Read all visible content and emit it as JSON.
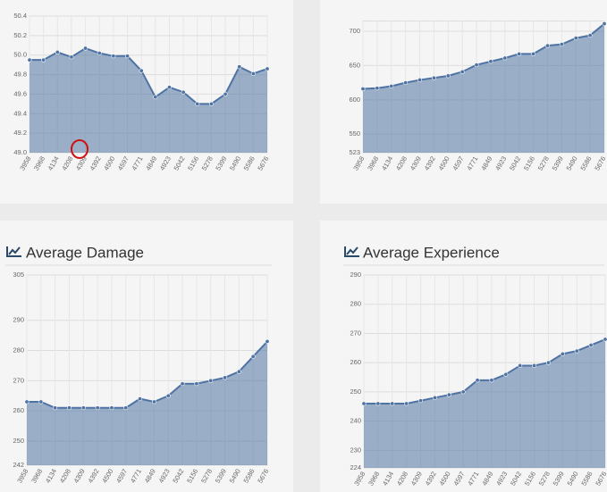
{
  "chart_data": [
    {
      "type": "area",
      "color": "#4e73a3",
      "categories": [
        "3958",
        "3968",
        "4134",
        "4208",
        "4309",
        "4392",
        "4500",
        "4597",
        "4771",
        "4849",
        "4923",
        "5042",
        "5156",
        "5278",
        "5399",
        "5490",
        "5586",
        "5676"
      ],
      "values": [
        49.95,
        49.95,
        50.03,
        49.98,
        50.07,
        50.02,
        49.99,
        49.99,
        49.84,
        49.57,
        49.67,
        49.62,
        49.5,
        49.5,
        49.6,
        49.88,
        49.81,
        49.86
      ],
      "ylim": [
        49.0,
        50.4
      ],
      "yticks": [
        {
          "value": 49.0,
          "label": "49.0"
        },
        49.2,
        49.4,
        49.6,
        49.8,
        {
          "value": 50.0,
          "label": "50.0"
        },
        50.2,
        50.4
      ],
      "grid": true
    },
    {
      "type": "area",
      "color": "#4e73a3",
      "categories": [
        "3958",
        "3968",
        "4134",
        "4208",
        "4309",
        "4392",
        "4500",
        "4597",
        "4771",
        "4849",
        "4923",
        "5042",
        "5156",
        "5278",
        "5399",
        "5490",
        "5586",
        "5676"
      ],
      "values": [
        616,
        617,
        620,
        625,
        629,
        632,
        635,
        641,
        651,
        656,
        661,
        667,
        667,
        679,
        681,
        690,
        694,
        711
      ],
      "ylim": [
        523,
        715
      ],
      "yticks": [
        523,
        550,
        600,
        650,
        700
      ],
      "grid": true
    },
    {
      "type": "area",
      "title": "Average Damage",
      "color": "#4e73a3",
      "categories": [
        "3958",
        "3968",
        "4134",
        "4208",
        "4309",
        "4392",
        "4500",
        "4597",
        "4771",
        "4849",
        "4923",
        "5042",
        "5156",
        "5278",
        "5399",
        "5490",
        "5586",
        "5676"
      ],
      "values": [
        263,
        263,
        261,
        261,
        261,
        261,
        261,
        261,
        264,
        263,
        265,
        269,
        269,
        270,
        271,
        273,
        278,
        283
      ],
      "ylim": [
        242,
        305
      ],
      "yticks": [
        242,
        250,
        260,
        270,
        280,
        290,
        305
      ],
      "grid": true
    },
    {
      "type": "area",
      "title": "Average Experience",
      "color": "#4e73a3",
      "categories": [
        "3958",
        "3968",
        "4134",
        "4208",
        "4309",
        "4392",
        "4500",
        "4597",
        "4771",
        "4849",
        "4923",
        "5042",
        "5156",
        "5278",
        "5399",
        "5490",
        "5586",
        "5676"
      ],
      "values": [
        246,
        246,
        246,
        246,
        247,
        248,
        249,
        250,
        254,
        254,
        256,
        259,
        259,
        260,
        263,
        264,
        266,
        268
      ],
      "ylim": [
        224,
        290
      ],
      "yticks": [
        224,
        230,
        240,
        250,
        260,
        270,
        280,
        290
      ],
      "grid": true
    }
  ]
}
